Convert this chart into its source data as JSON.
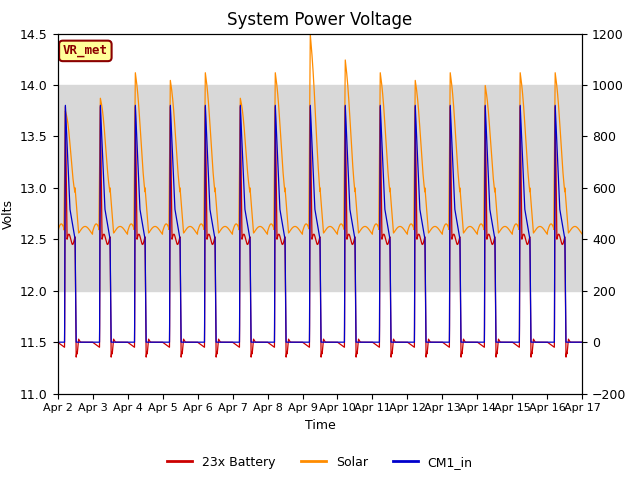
{
  "title": "System Power Voltage",
  "xlabel": "Time",
  "ylabel": "Volts",
  "ylim_left": [
    11.0,
    14.5
  ],
  "ylim_right": [
    -200,
    1200
  ],
  "yticks_left": [
    11.0,
    11.5,
    12.0,
    12.5,
    13.0,
    13.5,
    14.0,
    14.5
  ],
  "yticks_right": [
    -200,
    0,
    200,
    400,
    600,
    800,
    1000,
    1200
  ],
  "xtick_labels": [
    "Apr 2",
    "Apr 3",
    "Apr 4",
    "Apr 5",
    "Apr 6",
    "Apr 7",
    "Apr 8",
    "Apr 9",
    "Apr 10",
    "Apr 11",
    "Apr 12",
    "Apr 13",
    "Apr 14",
    "Apr 15",
    "Apr 16",
    "Apr 17"
  ],
  "xtick_positions": [
    0,
    1,
    2,
    3,
    4,
    5,
    6,
    7,
    8,
    9,
    10,
    11,
    12,
    13,
    14,
    15
  ],
  "annotation_text": "VR_met",
  "bg_band_y1": 12.0,
  "bg_band_y2": 14.0,
  "colors": {
    "battery": "#cc0000",
    "solar": "#ff8c00",
    "cm1": "#0000cc",
    "band": "#d8d8d8"
  },
  "legend_labels": [
    "23x Battery",
    "Solar",
    "CM1_in"
  ],
  "title_fontsize": 12,
  "axis_fontsize": 9,
  "tick_fontsize": 9,
  "n_days": 15,
  "pts_per_day": 288
}
